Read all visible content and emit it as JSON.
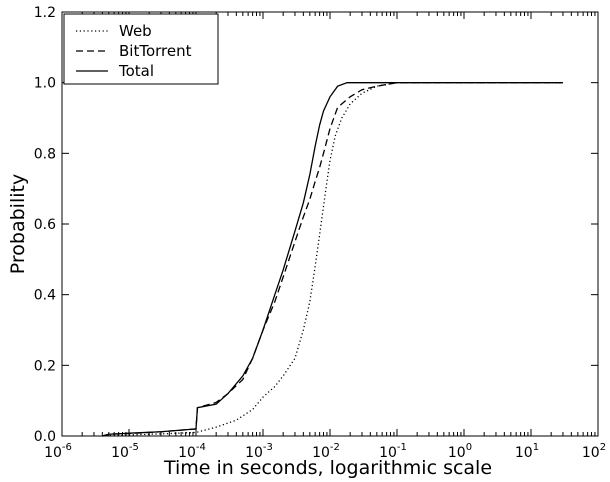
{
  "chart_data": {
    "type": "line",
    "title": "",
    "xlabel": "Time in seconds, logarithmic scale",
    "ylabel": "Probability",
    "xscale": "log",
    "xlim": [
      1e-06,
      100
    ],
    "ylim": [
      0,
      1.2
    ],
    "grid": false,
    "legend_position": "top-left",
    "x_ticks": [
      {
        "base": "10",
        "exp": "-6",
        "value": 1e-06
      },
      {
        "base": "10",
        "exp": "-5",
        "value": 1e-05
      },
      {
        "base": "10",
        "exp": "-4",
        "value": 0.0001
      },
      {
        "base": "10",
        "exp": "-3",
        "value": 0.001
      },
      {
        "base": "10",
        "exp": "-2",
        "value": 0.01
      },
      {
        "base": "10",
        "exp": "-1",
        "value": 0.1
      },
      {
        "base": "10",
        "exp": "0",
        "value": 1
      },
      {
        "base": "10",
        "exp": "1",
        "value": 10
      },
      {
        "base": "10",
        "exp": "2",
        "value": 100
      }
    ],
    "y_ticks": [
      {
        "label": "0.0",
        "value": 0.0
      },
      {
        "label": "0.2",
        "value": 0.2
      },
      {
        "label": "0.4",
        "value": 0.4
      },
      {
        "label": "0.6",
        "value": 0.6
      },
      {
        "label": "0.8",
        "value": 0.8
      },
      {
        "label": "1.0",
        "value": 1.0
      },
      {
        "label": "1.2",
        "value": 1.2
      }
    ],
    "series": [
      {
        "name": "Web",
        "dash": "dotted",
        "color": "#000000",
        "points": [
          [
            4e-06,
            0.0
          ],
          [
            1e-05,
            0.003
          ],
          [
            3e-05,
            0.006
          ],
          [
            0.0001,
            0.01
          ],
          [
            0.0002,
            0.025
          ],
          [
            0.0004,
            0.045
          ],
          [
            0.0007,
            0.075
          ],
          [
            0.001,
            0.11
          ],
          [
            0.0015,
            0.14
          ],
          [
            0.002,
            0.17
          ],
          [
            0.003,
            0.22
          ],
          [
            0.004,
            0.3
          ],
          [
            0.005,
            0.38
          ],
          [
            0.006,
            0.48
          ],
          [
            0.007,
            0.57
          ],
          [
            0.008,
            0.65
          ],
          [
            0.009,
            0.72
          ],
          [
            0.01,
            0.78
          ],
          [
            0.012,
            0.85
          ],
          [
            0.015,
            0.9
          ],
          [
            0.02,
            0.94
          ],
          [
            0.03,
            0.97
          ],
          [
            0.05,
            0.99
          ],
          [
            0.1,
            1.0
          ],
          [
            30,
            1.0
          ]
        ]
      },
      {
        "name": "BitTorrent",
        "dash": "dashed",
        "color": "#000000",
        "points": [
          [
            4e-06,
            0.0
          ],
          [
            5e-06,
            0.005
          ],
          [
            1e-05,
            0.007
          ],
          [
            3e-05,
            0.012
          ],
          [
            0.0001,
            0.02
          ],
          [
            0.000105,
            0.08
          ],
          [
            0.0002,
            0.095
          ],
          [
            0.0003,
            0.12
          ],
          [
            0.0005,
            0.16
          ],
          [
            0.0007,
            0.22
          ],
          [
            0.001,
            0.3
          ],
          [
            0.0015,
            0.38
          ],
          [
            0.002,
            0.45
          ],
          [
            0.003,
            0.55
          ],
          [
            0.004,
            0.62
          ],
          [
            0.005,
            0.67
          ],
          [
            0.006,
            0.72
          ],
          [
            0.007,
            0.76
          ],
          [
            0.008,
            0.8
          ],
          [
            0.01,
            0.87
          ],
          [
            0.013,
            0.93
          ],
          [
            0.02,
            0.96
          ],
          [
            0.03,
            0.98
          ],
          [
            0.05,
            0.99
          ],
          [
            0.1,
            1.0
          ],
          [
            30,
            1.0
          ]
        ]
      },
      {
        "name": "Total",
        "dash": "solid",
        "color": "#000000",
        "points": [
          [
            4e-06,
            0.0
          ],
          [
            5e-06,
            0.005
          ],
          [
            1e-05,
            0.008
          ],
          [
            3e-05,
            0.012
          ],
          [
            0.0001,
            0.02
          ],
          [
            0.000105,
            0.08
          ],
          [
            0.0002,
            0.09
          ],
          [
            0.0003,
            0.12
          ],
          [
            0.0005,
            0.17
          ],
          [
            0.0007,
            0.22
          ],
          [
            0.001,
            0.3
          ],
          [
            0.0015,
            0.4
          ],
          [
            0.002,
            0.47
          ],
          [
            0.003,
            0.58
          ],
          [
            0.004,
            0.66
          ],
          [
            0.005,
            0.74
          ],
          [
            0.006,
            0.82
          ],
          [
            0.007,
            0.88
          ],
          [
            0.008,
            0.92
          ],
          [
            0.01,
            0.96
          ],
          [
            0.013,
            0.99
          ],
          [
            0.018,
            1.0
          ],
          [
            30,
            1.0
          ]
        ]
      }
    ]
  }
}
